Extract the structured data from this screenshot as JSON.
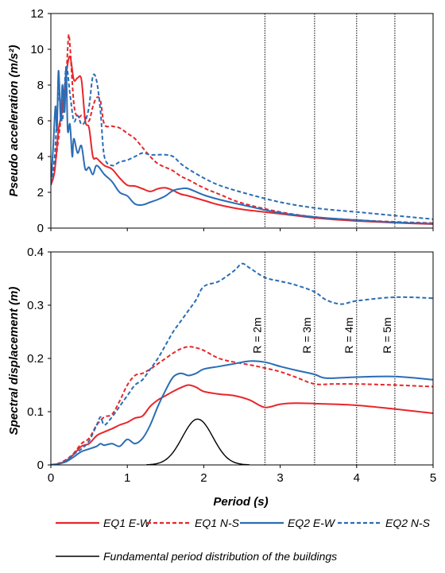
{
  "chart_data": [
    {
      "type": "line",
      "ylabel": "Pseudo acceleration (m/s²)",
      "xlim": [
        0,
        5
      ],
      "ylim": [
        0,
        12
      ],
      "yticks": [
        "0",
        "2",
        "4",
        "6",
        "8",
        "10",
        "12"
      ],
      "xticks": [
        0,
        1,
        2,
        3,
        4,
        5
      ],
      "grid": false,
      "reference_lines_x": [
        2.8,
        3.45,
        4.0,
        4.5
      ],
      "series": [
        {
          "name": "EQ1 E-W",
          "color": "#e8262a",
          "dash": "solid",
          "x": [
            0.0,
            0.05,
            0.1,
            0.15,
            0.2,
            0.25,
            0.3,
            0.35,
            0.4,
            0.45,
            0.5,
            0.55,
            0.6,
            0.7,
            0.8,
            0.9,
            1.0,
            1.1,
            1.2,
            1.3,
            1.4,
            1.5,
            1.6,
            1.7,
            1.8,
            2.0,
            2.2,
            2.5,
            3.0,
            3.5,
            4.0,
            4.5,
            5.0
          ],
          "y": [
            2.4,
            3.2,
            5.5,
            6.6,
            8.6,
            9.6,
            8.3,
            8.4,
            8.3,
            6.0,
            5.6,
            4.0,
            3.9,
            3.5,
            3.3,
            2.8,
            2.4,
            2.35,
            2.2,
            2.05,
            2.2,
            2.25,
            2.1,
            1.9,
            1.8,
            1.55,
            1.3,
            1.05,
            0.8,
            0.55,
            0.4,
            0.3,
            0.22
          ]
        },
        {
          "name": "EQ1 N-S",
          "color": "#e8262a",
          "dash": "dashed",
          "x": [
            0.0,
            0.05,
            0.1,
            0.15,
            0.2,
            0.23,
            0.25,
            0.3,
            0.35,
            0.4,
            0.45,
            0.5,
            0.55,
            0.6,
            0.65,
            0.7,
            0.8,
            0.9,
            1.0,
            1.1,
            1.2,
            1.3,
            1.4,
            1.5,
            1.6,
            1.7,
            1.8,
            2.0,
            2.2,
            2.5,
            3.0,
            3.5,
            4.0,
            4.5,
            5.0
          ],
          "y": [
            2.5,
            3.4,
            5.0,
            6.8,
            8.5,
            10.7,
            10.2,
            7.0,
            6.2,
            6.3,
            6.2,
            6.0,
            6.8,
            7.3,
            7.1,
            5.8,
            5.7,
            5.6,
            5.3,
            5.0,
            4.5,
            4.0,
            3.6,
            3.4,
            3.2,
            2.9,
            2.7,
            2.25,
            1.9,
            1.4,
            0.9,
            0.6,
            0.45,
            0.35,
            0.28
          ]
        },
        {
          "name": "EQ2 E-W",
          "color": "#2a6db5",
          "dash": "solid",
          "x": [
            0.0,
            0.03,
            0.06,
            0.08,
            0.1,
            0.13,
            0.15,
            0.18,
            0.2,
            0.22,
            0.25,
            0.28,
            0.3,
            0.35,
            0.4,
            0.45,
            0.5,
            0.55,
            0.6,
            0.7,
            0.8,
            0.9,
            1.0,
            1.1,
            1.2,
            1.3,
            1.4,
            1.5,
            1.6,
            1.7,
            1.8,
            2.0,
            2.2,
            2.5,
            3.0,
            3.5,
            4.0,
            4.5,
            5.0
          ],
          "y": [
            2.4,
            4.5,
            6.8,
            5.5,
            8.8,
            6.0,
            8.0,
            6.5,
            9.0,
            5.5,
            5.8,
            4.0,
            5.0,
            4.2,
            4.6,
            3.3,
            3.4,
            3.0,
            3.5,
            3.0,
            2.6,
            2.0,
            1.8,
            1.35,
            1.3,
            1.45,
            1.6,
            1.8,
            2.1,
            2.2,
            2.2,
            1.85,
            1.6,
            1.3,
            0.85,
            0.6,
            0.45,
            0.32,
            0.25
          ]
        },
        {
          "name": "EQ2 N-S",
          "color": "#2a6db5",
          "dash": "dashed",
          "x": [
            0.0,
            0.05,
            0.1,
            0.15,
            0.2,
            0.25,
            0.3,
            0.35,
            0.4,
            0.45,
            0.5,
            0.55,
            0.6,
            0.65,
            0.7,
            0.8,
            0.9,
            1.0,
            1.1,
            1.2,
            1.3,
            1.4,
            1.5,
            1.6,
            1.7,
            1.8,
            2.0,
            2.2,
            2.5,
            3.0,
            3.5,
            4.0,
            4.5,
            5.0
          ],
          "y": [
            2.5,
            4.0,
            7.5,
            6.0,
            9.0,
            7.5,
            6.0,
            6.3,
            5.8,
            6.0,
            6.8,
            8.5,
            8.2,
            6.5,
            4.0,
            3.5,
            3.7,
            3.8,
            4.0,
            4.2,
            4.1,
            4.1,
            4.1,
            4.0,
            3.6,
            3.3,
            2.8,
            2.4,
            2.0,
            1.45,
            1.1,
            0.9,
            0.7,
            0.5
          ]
        }
      ]
    },
    {
      "type": "line",
      "xlabel": "Period (s)",
      "ylabel": "Spectral displacement (m)",
      "xlim": [
        0,
        5
      ],
      "ylim": [
        0,
        0.4
      ],
      "xticks": [
        0,
        1,
        2,
        3,
        4,
        5
      ],
      "yticks": [
        "0",
        "0.1",
        "0.2",
        "0.3",
        "0.4"
      ],
      "grid": false,
      "reference_lines": [
        {
          "x": 2.8,
          "label": "R = 2m"
        },
        {
          "x": 3.45,
          "label": "R = 3m"
        },
        {
          "x": 4.0,
          "label": "R = 4m"
        },
        {
          "x": 4.5,
          "label": "R = 5m"
        }
      ],
      "series": [
        {
          "name": "EQ1 E-W",
          "color": "#e8262a",
          "dash": "solid",
          "x": [
            0.0,
            0.1,
            0.2,
            0.3,
            0.4,
            0.5,
            0.6,
            0.7,
            0.8,
            0.9,
            1.0,
            1.1,
            1.2,
            1.3,
            1.4,
            1.5,
            1.6,
            1.7,
            1.8,
            1.9,
            2.0,
            2.2,
            2.4,
            2.6,
            2.8,
            3.0,
            3.2,
            3.5,
            4.0,
            4.5,
            5.0
          ],
          "y": [
            0.0,
            0.002,
            0.008,
            0.02,
            0.035,
            0.04,
            0.055,
            0.062,
            0.068,
            0.075,
            0.08,
            0.088,
            0.092,
            0.11,
            0.122,
            0.13,
            0.138,
            0.145,
            0.15,
            0.146,
            0.138,
            0.133,
            0.13,
            0.122,
            0.108,
            0.114,
            0.116,
            0.115,
            0.112,
            0.105,
            0.097
          ]
        },
        {
          "name": "EQ1 N-S",
          "color": "#e8262a",
          "dash": "dashed",
          "x": [
            0.0,
            0.1,
            0.2,
            0.3,
            0.4,
            0.5,
            0.6,
            0.7,
            0.8,
            0.9,
            1.0,
            1.1,
            1.2,
            1.3,
            1.4,
            1.5,
            1.6,
            1.7,
            1.8,
            1.9,
            2.0,
            2.2,
            2.4,
            2.6,
            2.8,
            3.0,
            3.2,
            3.45,
            3.7,
            4.0,
            4.5,
            5.0
          ],
          "y": [
            0.0,
            0.003,
            0.01,
            0.022,
            0.04,
            0.05,
            0.075,
            0.09,
            0.095,
            0.12,
            0.15,
            0.168,
            0.172,
            0.18,
            0.19,
            0.2,
            0.21,
            0.218,
            0.222,
            0.22,
            0.215,
            0.2,
            0.193,
            0.188,
            0.182,
            0.175,
            0.165,
            0.152,
            0.152,
            0.152,
            0.15,
            0.147
          ]
        },
        {
          "name": "EQ2 E-W",
          "color": "#2a6db5",
          "dash": "solid",
          "x": [
            0.0,
            0.1,
            0.2,
            0.3,
            0.4,
            0.5,
            0.6,
            0.65,
            0.7,
            0.8,
            0.9,
            1.0,
            1.1,
            1.2,
            1.3,
            1.4,
            1.5,
            1.6,
            1.7,
            1.8,
            1.9,
            2.0,
            2.2,
            2.4,
            2.6,
            2.8,
            3.0,
            3.2,
            3.45,
            3.6,
            4.0,
            4.5,
            5.0
          ],
          "y": [
            0.0,
            0.002,
            0.006,
            0.015,
            0.025,
            0.03,
            0.035,
            0.04,
            0.037,
            0.04,
            0.035,
            0.048,
            0.04,
            0.05,
            0.075,
            0.11,
            0.14,
            0.165,
            0.172,
            0.168,
            0.172,
            0.18,
            0.185,
            0.19,
            0.195,
            0.193,
            0.185,
            0.178,
            0.17,
            0.163,
            0.165,
            0.166,
            0.16
          ]
        },
        {
          "name": "EQ2 N-S",
          "color": "#2a6db5",
          "dash": "dashed",
          "x": [
            0.0,
            0.1,
            0.2,
            0.3,
            0.4,
            0.5,
            0.6,
            0.65,
            0.7,
            0.8,
            0.9,
            1.0,
            1.1,
            1.2,
            1.3,
            1.4,
            1.5,
            1.6,
            1.7,
            1.8,
            1.9,
            2.0,
            2.2,
            2.4,
            2.5,
            2.6,
            2.8,
            3.0,
            3.2,
            3.45,
            3.6,
            3.8,
            4.0,
            4.5,
            5.0
          ],
          "y": [
            0.0,
            0.002,
            0.008,
            0.02,
            0.03,
            0.045,
            0.075,
            0.09,
            0.075,
            0.09,
            0.11,
            0.13,
            0.15,
            0.16,
            0.18,
            0.2,
            0.225,
            0.25,
            0.27,
            0.29,
            0.31,
            0.335,
            0.345,
            0.365,
            0.378,
            0.37,
            0.352,
            0.345,
            0.338,
            0.325,
            0.31,
            0.302,
            0.308,
            0.315,
            0.313
          ]
        },
        {
          "name": "Fundamental period distribution of the buildings",
          "color": "#000000",
          "dash": "solid",
          "distribution": {
            "mean": 1.92,
            "std": 0.2,
            "peak": 0.086,
            "xmin": 1.25,
            "xmax": 2.6
          }
        }
      ]
    }
  ],
  "legend": {
    "placement": "bottom",
    "items": [
      {
        "label": "EQ1 E-W",
        "color": "#e8262a",
        "dash": "solid"
      },
      {
        "label": "EQ1 N-S",
        "color": "#e8262a",
        "dash": "dashed"
      },
      {
        "label": "EQ2 E-W",
        "color": "#2a6db5",
        "dash": "solid"
      },
      {
        "label": "EQ2 N-S",
        "color": "#2a6db5",
        "dash": "dashed"
      },
      {
        "label": "Fundamental period distribution of the buildings",
        "color": "#000000",
        "dash": "solid"
      }
    ]
  }
}
